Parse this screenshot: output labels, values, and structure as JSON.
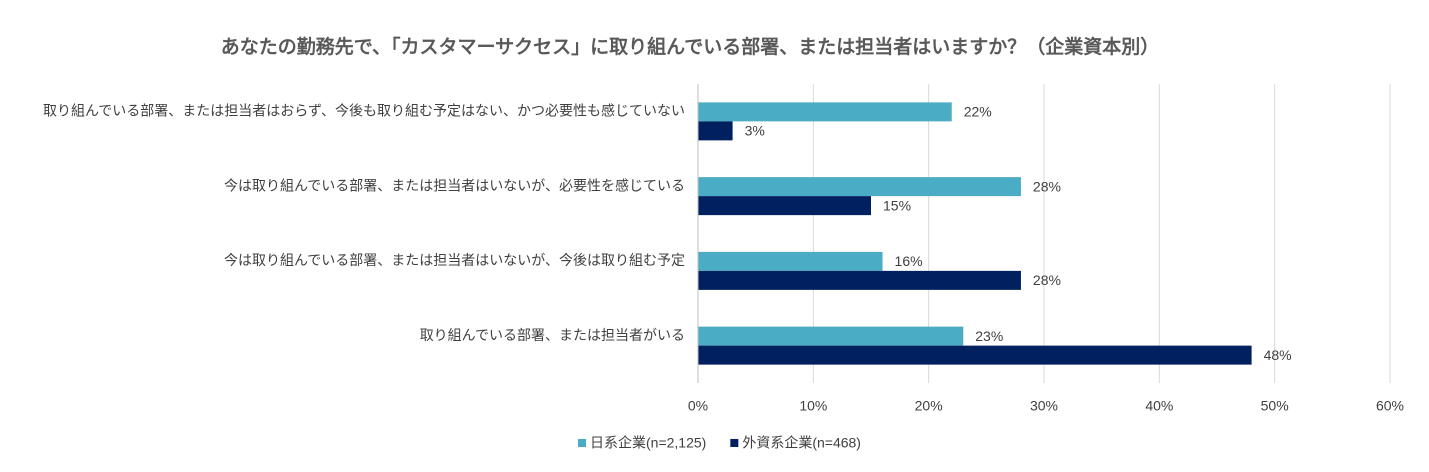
{
  "chart_data": {
    "type": "bar",
    "orientation": "horizontal",
    "title": "あなたの勤務先で、「カスタマーサクセス」に取り組んでいる部署、または担当者はいますか？（企業資本別）",
    "categories": [
      "取り組んでいる部署、または担当者はおらず、今後も取り組む予定はない、かつ必要性も感じていない",
      "今は取り組んでいる部署、または担当者はいないが、必要性を感じている",
      "今は取り組んでいる部署、または担当者はいないが、今後は取り組む予定",
      "取り組んでいる部署、または担当者がいる"
    ],
    "series": [
      {
        "name": "日系企業(n=2,125)",
        "color": "#4bacc6",
        "values": [
          22,
          28,
          16,
          23
        ],
        "value_labels": [
          "22%",
          "28%",
          "16%",
          "23%"
        ]
      },
      {
        "name": "外資系企業(n=468)",
        "color": "#002060",
        "values": [
          3,
          15,
          28,
          48
        ],
        "value_labels": [
          "3%",
          "15%",
          "28%",
          "48%"
        ]
      }
    ],
    "xlim": [
      0,
      60
    ],
    "xticks": [
      {
        "value": 0,
        "label": "0%"
      },
      {
        "value": 10,
        "label": "10%"
      },
      {
        "value": 20,
        "label": "20%"
      },
      {
        "value": 30,
        "label": "30%"
      },
      {
        "value": 40,
        "label": "40%"
      },
      {
        "value": 50,
        "label": "50%"
      },
      {
        "value": 60,
        "label": "60%"
      }
    ],
    "grid": true,
    "legend": "bottom"
  }
}
